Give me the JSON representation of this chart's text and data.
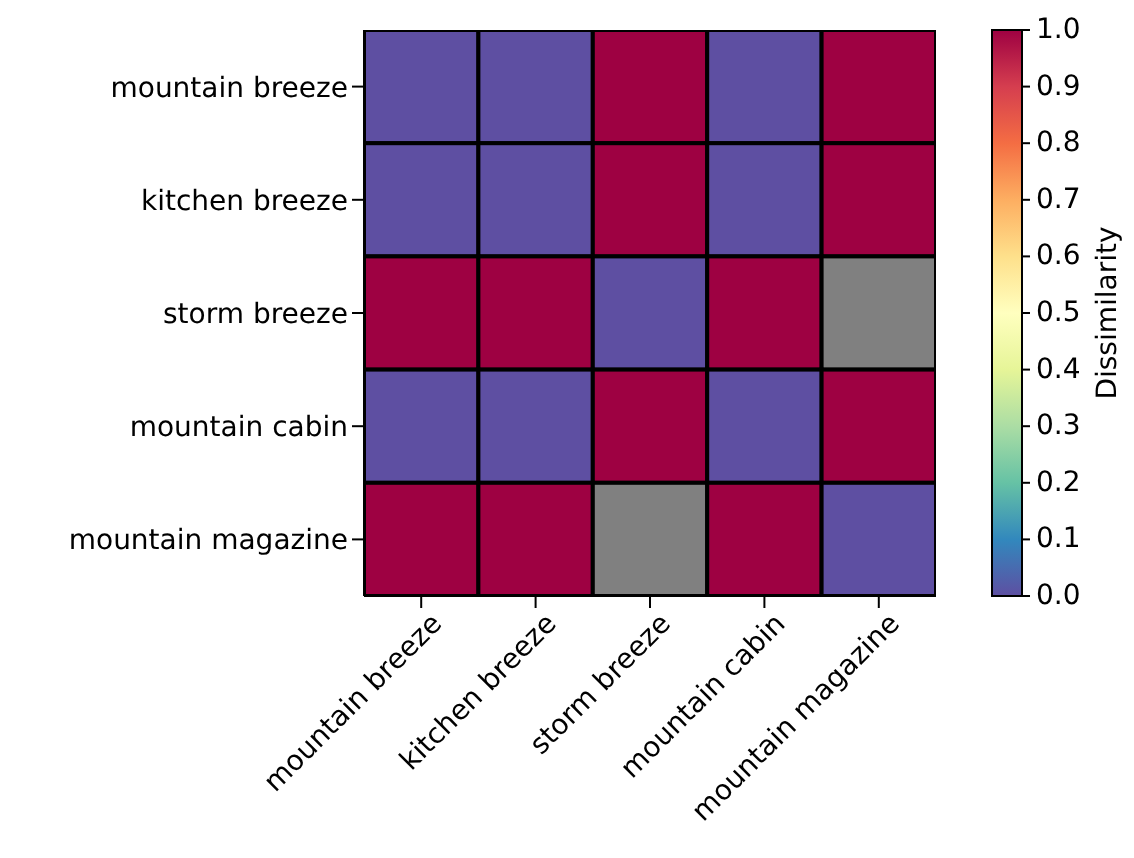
{
  "chart_data": {
    "type": "heatmap",
    "clabel": "Dissimilarity",
    "categories": [
      "mountain breeze",
      "kitchen breeze",
      "storm breeze",
      "mountain cabin",
      "mountain magazine"
    ],
    "y_categories": [
      "mountain breeze",
      "kitchen breeze",
      "storm breeze",
      "mountain cabin",
      "mountain magazine"
    ],
    "cells": [
      [
        0,
        0,
        1,
        0,
        1
      ],
      [
        0,
        0,
        1,
        0,
        1
      ],
      [
        1,
        1,
        0,
        1,
        null
      ],
      [
        0,
        0,
        1,
        0,
        1
      ],
      [
        1,
        1,
        null,
        1,
        0
      ]
    ],
    "clim": [
      0,
      1
    ],
    "cticks": [
      {
        "value": 0,
        "label": "0.0"
      },
      {
        "value": 0.1,
        "label": "0.1"
      },
      {
        "value": 0.2,
        "label": "0.2"
      },
      {
        "value": 0.3,
        "label": "0.3"
      },
      {
        "value": 0.4,
        "label": "0.4"
      },
      {
        "value": 0.5,
        "label": "0.5"
      },
      {
        "value": 0.6,
        "label": "0.6"
      },
      {
        "value": 0.7,
        "label": "0.7"
      },
      {
        "value": 0.8,
        "label": "0.8"
      },
      {
        "value": 0.9,
        "label": "0.9"
      },
      {
        "value": 1,
        "label": "1.0"
      }
    ]
  }
}
